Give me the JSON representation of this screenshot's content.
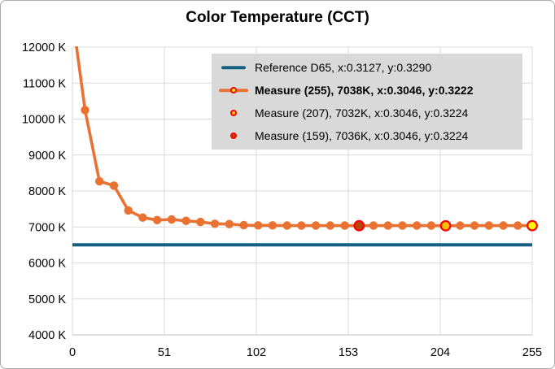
{
  "colors": {
    "series": "#e97132",
    "reference": "#156082",
    "marker_ring": "#ff0000",
    "special_fill_255": "#ffff00",
    "special_fill_207": "#ffc000",
    "special_fill_159": "#b3470e",
    "gridline": "#d9d9d9",
    "axis_line": "#bfbfbf",
    "legend_background": "#d9d9d9",
    "text": "#000000"
  },
  "legend": {
    "entries": [
      {
        "label": "Reference D65, x:0.3127, y:0.3290",
        "marker": "line",
        "line_color": "#156082",
        "bold": false
      },
      {
        "label": "Measure (255), 7038K, x:0.3046, y:0.3222",
        "marker": "line-circle",
        "line_color": "#e97132",
        "fill": "#ffff00",
        "ring": "#ff0000",
        "bold": true
      },
      {
        "label": "Measure (207), 7032K, x:0.3046, y:0.3224",
        "marker": "circle",
        "fill": "#ffc000",
        "ring": "#ff0000",
        "bold": false
      },
      {
        "label": "Measure (159), 7036K, x:0.3046, y:0.3224",
        "marker": "circle",
        "fill": "#b3470e",
        "ring": "#ff0000",
        "bold": false
      }
    ]
  },
  "chart_data": {
    "type": "line",
    "title": "Color Temperature (CCT)",
    "xlabel": "",
    "ylabel": "",
    "xlim": [
      0,
      255
    ],
    "ylim": [
      4000,
      12000
    ],
    "x_ticks": [
      0,
      51,
      102,
      153,
      204,
      255
    ],
    "y_ticks": [
      4000,
      5000,
      6000,
      7000,
      8000,
      9000,
      10000,
      11000,
      12000
    ],
    "y_tick_suffix": " K",
    "grid": true,
    "legend_position": "top-right-inside",
    "x": [
      0,
      7,
      15,
      23,
      31,
      39,
      47,
      55,
      63,
      71,
      79,
      87,
      95,
      103,
      111,
      119,
      127,
      135,
      143,
      151,
      159,
      167,
      175,
      183,
      191,
      199,
      207,
      215,
      223,
      231,
      239,
      247,
      255
    ],
    "series": [
      {
        "name": "Measure",
        "clipped_above_ymax_at_x0": true,
        "values": [
          12860,
          10250,
          8270,
          8150,
          7460,
          7260,
          7190,
          7210,
          7170,
          7140,
          7090,
          7080,
          7050,
          7045,
          7045,
          7040,
          7040,
          7040,
          7040,
          7040,
          7036,
          7040,
          7040,
          7040,
          7040,
          7040,
          7032,
          7040,
          7040,
          7040,
          7040,
          7040,
          7038
        ]
      }
    ],
    "special_points": [
      {
        "x": 159,
        "value": 7036,
        "fill": "#b3470e"
      },
      {
        "x": 207,
        "value": 7032,
        "fill": "#ffc000"
      },
      {
        "x": 255,
        "value": 7038,
        "fill": "#ffff00"
      }
    ],
    "reference_line": {
      "label": "Reference D65",
      "value": 6504
    }
  }
}
